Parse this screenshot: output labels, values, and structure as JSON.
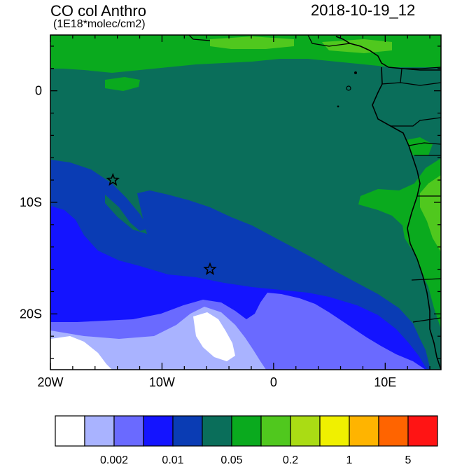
{
  "title": "CO col Anthro",
  "subtitle": "(1E18*molec/cm2)",
  "timestamp": "2018-10-19_12",
  "map": {
    "lon_range": [
      -20,
      15
    ],
    "lat_range": [
      -25,
      5
    ],
    "x_ticks": [
      {
        "value": -20,
        "label": "20W"
      },
      {
        "value": -10,
        "label": "10W"
      },
      {
        "value": 0,
        "label": "0"
      },
      {
        "value": 10,
        "label": "10E"
      }
    ],
    "y_ticks": [
      {
        "value": 0,
        "label": "0"
      },
      {
        "value": -10,
        "label": "10S"
      },
      {
        "value": -20,
        "label": "20S"
      }
    ],
    "markers": [
      {
        "name": "star-marker",
        "lon": -14.4,
        "lat": -8.0
      },
      {
        "name": "star-marker",
        "lon": -5.7,
        "lat": -16.0
      }
    ]
  },
  "colorbar": {
    "colors": [
      "#ffffff",
      "#a9b3ff",
      "#6a6aff",
      "#1414ff",
      "#0a3cb4",
      "#0a6e5a",
      "#0aaa1e",
      "#50c81e",
      "#aadc14",
      "#f0f000",
      "#ffb400",
      "#ff6400",
      "#ff1414"
    ],
    "labels": [
      {
        "after_index": 1,
        "text": "0.002"
      },
      {
        "after_index": 3,
        "text": "0.01"
      },
      {
        "after_index": 5,
        "text": "0.05"
      },
      {
        "after_index": 7,
        "text": "0.2"
      },
      {
        "after_index": 9,
        "text": "1"
      },
      {
        "after_index": 11,
        "text": "5"
      }
    ]
  }
}
